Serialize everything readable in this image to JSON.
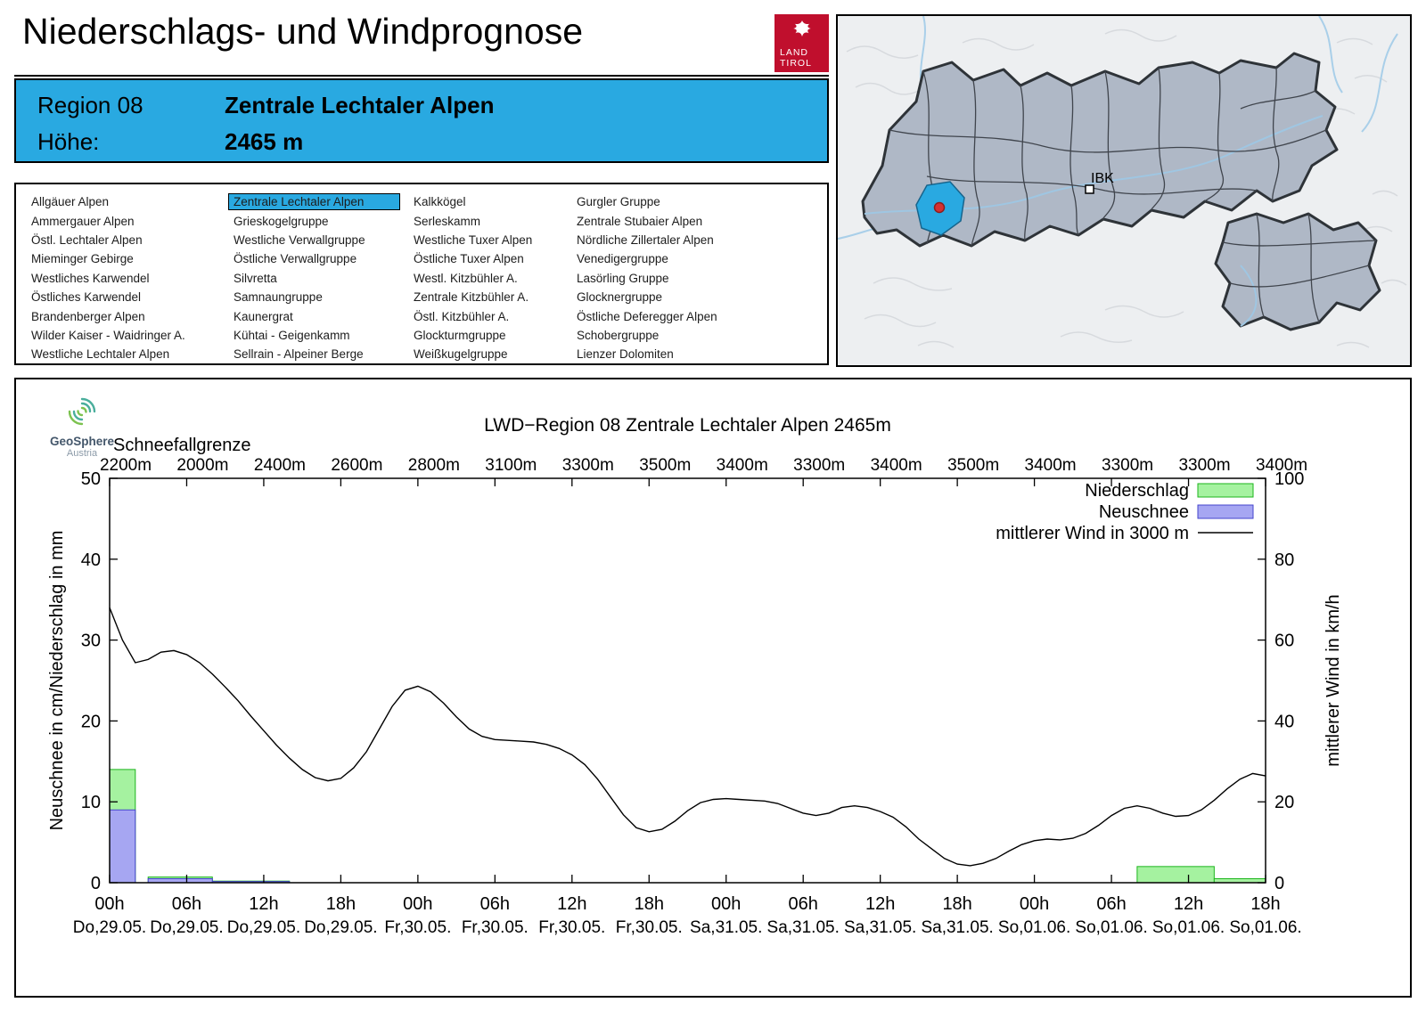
{
  "header": {
    "title": "Niederschlags- und Windprognose",
    "logo": {
      "line1": "LAND",
      "line2": "TIROL"
    }
  },
  "banner": {
    "region_label": "Region 08",
    "region_name": "Zentrale Lechtaler Alpen",
    "altitude_label": "Höhe:",
    "altitude_value": "2465 m"
  },
  "map": {
    "city_label": "IBK"
  },
  "region_selector": {
    "selected": "Zentrale Lechtaler Alpen",
    "columns": [
      [
        "Allgäuer Alpen",
        "Ammergauer Alpen",
        "Östl. Lechtaler Alpen",
        "Mieminger Gebirge",
        "Westliches Karwendel",
        "Östliches Karwendel",
        "Brandenberger Alpen",
        "Wilder Kaiser - Waidringer A.",
        "Westliche Lechtaler Alpen"
      ],
      [
        "Zentrale Lechtaler Alpen",
        "Grieskogelgruppe",
        "Westliche Verwallgruppe",
        "Östliche Verwallgruppe",
        "Silvretta",
        "Samnaungruppe",
        "Kaunergrat",
        "Kühtai - Geigenkamm",
        "Sellrain - Alpeiner Berge"
      ],
      [
        "Kalkkögel",
        "Serleskamm",
        "Westliche Tuxer Alpen",
        "Östliche Tuxer Alpen",
        "Westl. Kitzbühler A.",
        "Zentrale Kitzbühler A.",
        "Östl. Kitzbühler A.",
        "Glockturmgruppe",
        "Weißkugelgruppe"
      ],
      [
        "Gurgler Gruppe",
        "Zentrale Stubaier Alpen",
        "Nördliche Zillertaler Alpen",
        "Venedigergruppe",
        "Lasörling Gruppe",
        "Glocknergruppe",
        "Östliche Deferegger Alpen",
        "Schobergruppe",
        "Lienzer Dolomiten"
      ]
    ]
  },
  "geosphere": {
    "line1": "GeoSphere",
    "line2": "Austria"
  },
  "colors": {
    "accent_blue": "#29A9E1",
    "logo_red": "#C00F2D",
    "precip_fill": "#A5F2A0",
    "precip_stroke": "#1DB51D",
    "snow_fill": "#A6A6F2",
    "snow_stroke": "#4444CC",
    "wind_line": "#000000",
    "map_region_fill": "#AFB8C6",
    "map_border": "#2E3338",
    "river_blue": "#A9CFE9"
  },
  "chart_data": {
    "type": "bar",
    "subtype": "meteogram with precipitation/new-snow bars and wind line",
    "title": "LWD−Region 08 Zentrale Lechtaler Alpen 2465m",
    "ylabel_left": "Neuschnee in cm/Niederschlag in mm",
    "ylabel_right": "mittlerer Wind in km/h",
    "ylim_left": [
      0,
      50
    ],
    "ylim_right": [
      0,
      100
    ],
    "x_hours_total": 90,
    "x_ticks": [
      {
        "hour": 0,
        "time": "00h",
        "date": "Do,29.05."
      },
      {
        "hour": 6,
        "time": "06h",
        "date": "Do,29.05."
      },
      {
        "hour": 12,
        "time": "12h",
        "date": "Do,29.05."
      },
      {
        "hour": 18,
        "time": "18h",
        "date": "Do,29.05."
      },
      {
        "hour": 24,
        "time": "00h",
        "date": "Fr,30.05."
      },
      {
        "hour": 30,
        "time": "06h",
        "date": "Fr,30.05."
      },
      {
        "hour": 36,
        "time": "12h",
        "date": "Fr,30.05."
      },
      {
        "hour": 42,
        "time": "18h",
        "date": "Fr,30.05."
      },
      {
        "hour": 48,
        "time": "00h",
        "date": "Sa,31.05."
      },
      {
        "hour": 54,
        "time": "06h",
        "date": "Sa,31.05."
      },
      {
        "hour": 60,
        "time": "12h",
        "date": "Sa,31.05."
      },
      {
        "hour": 66,
        "time": "18h",
        "date": "Sa,31.05."
      },
      {
        "hour": 72,
        "time": "00h",
        "date": "So,01.06."
      },
      {
        "hour": 78,
        "time": "06h",
        "date": "So,01.06."
      },
      {
        "hour": 84,
        "time": "12h",
        "date": "So,01.06."
      },
      {
        "hour": 90,
        "time": "18h",
        "date": "So,01.06."
      }
    ],
    "schneefallgrenze": {
      "label": "Schneefallgrenze",
      "values": [
        "2200m",
        "2000m",
        "2400m",
        "2600m",
        "2800m",
        "3100m",
        "3300m",
        "3500m",
        "3400m",
        "3300m",
        "3400m",
        "3500m",
        "3400m",
        "3300m",
        "3300m",
        "3400m"
      ]
    },
    "legend": [
      {
        "label": "Niederschlag",
        "swatch": "green-bar"
      },
      {
        "label": "Neuschnee",
        "swatch": "blue-bar"
      },
      {
        "label": "mittlerer Wind in 3000 m",
        "swatch": "black-line"
      }
    ],
    "niederschlag_bars_mm": [
      {
        "start_hour": 0,
        "end_hour": 2,
        "value": 14
      },
      {
        "start_hour": 3,
        "end_hour": 8,
        "value": 0.7
      },
      {
        "start_hour": 8,
        "end_hour": 14,
        "value": 0.2
      },
      {
        "start_hour": 80,
        "end_hour": 86,
        "value": 2
      },
      {
        "start_hour": 86,
        "end_hour": 90,
        "value": 0.5
      }
    ],
    "neuschnee_bars_cm": [
      {
        "start_hour": 0,
        "end_hour": 2,
        "value": 9
      },
      {
        "start_hour": 3,
        "end_hour": 8,
        "value": 0.5
      },
      {
        "start_hour": 8,
        "end_hour": 14,
        "value": 0.15
      }
    ],
    "wind_line_kmh": {
      "step_hours": 1,
      "values": [
        68,
        60,
        54.4,
        55.2,
        57,
        57.4,
        56.4,
        54.4,
        51.6,
        48.4,
        45,
        41.2,
        37.6,
        34,
        30.8,
        28,
        26,
        25.2,
        25.8,
        28.4,
        32.4,
        38,
        43.6,
        47.6,
        48.6,
        47.2,
        44.4,
        41,
        38,
        36.2,
        35.4,
        35.2,
        35,
        34.8,
        34.2,
        33.2,
        31.6,
        29.2,
        25.6,
        21.2,
        16.8,
        13.6,
        12.6,
        13.2,
        15.2,
        17.8,
        19.8,
        20.6,
        20.8,
        20.6,
        20.4,
        20.2,
        19.6,
        18.4,
        17.2,
        16.6,
        17.2,
        18.6,
        19,
        18.6,
        17.6,
        16.2,
        13.8,
        10.8,
        8.4,
        6,
        4.6,
        4.2,
        4.8,
        6,
        7.8,
        9.4,
        10.4,
        10.8,
        10.6,
        11,
        12.2,
        14.2,
        16.6,
        18.4,
        19,
        18.4,
        17.2,
        16.4,
        16.6,
        18,
        20.4,
        23.2,
        25.6,
        27,
        26.4
      ]
    }
  }
}
